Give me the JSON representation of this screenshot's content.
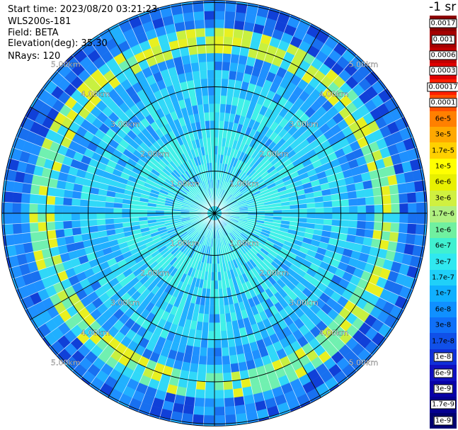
{
  "header": {
    "start_time": "Start time: 2023/08/20 03:21:23",
    "instrument": "WLS200s-181",
    "field": "Field: BETA",
    "elevation": "Elevation(deg): 35.30",
    "nrays": "NRays: 120"
  },
  "chart_data": {
    "type": "polar-ppi",
    "range_rings_km": [
      1,
      2,
      3,
      4,
      5
    ],
    "ring_labels": [
      "1.00km",
      "2.00km",
      "3.00km",
      "4.00km",
      "5.00km"
    ],
    "max_range_km": 5.05,
    "n_rays": 120,
    "spokes": 12,
    "colorbar": {
      "title": "-1 sr",
      "labels": [
        "0.0017",
        "0.001",
        "0.0006",
        "0.0003",
        "0.00017",
        "0.0001",
        "6e-5",
        "3e-5",
        "1.7e-5",
        "1e-5",
        "6e-6",
        "3e-6",
        "1.7e-6",
        "1e-6",
        "6e-7",
        "3e-7",
        "1.7e-7",
        "1e-7",
        "6e-8",
        "3e-8",
        "1.7e-8",
        "1e-8",
        "6e-9",
        "3e-9",
        "1.7e-9",
        "1e-9"
      ],
      "colors": [
        "#8b0000",
        "#a40000",
        "#c00000",
        "#e00000",
        "#ff2000",
        "#ff5000",
        "#ff8000",
        "#ffa800",
        "#ffd000",
        "#ffff00",
        "#e8f000",
        "#d0f040",
        "#b0f080",
        "#70f0a0",
        "#40f0d0",
        "#30e8f0",
        "#20d0f8",
        "#10b0ff",
        "#1090ff",
        "#1070f8",
        "#1050e8",
        "#1030d8",
        "#1010c0",
        "#0800a8",
        "#040090",
        "#000070"
      ]
    }
  }
}
